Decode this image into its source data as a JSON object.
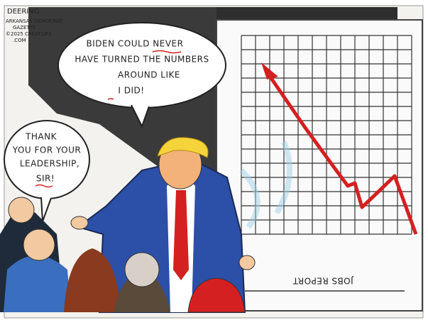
{
  "signature": {
    "lines": [
      "DEERING",
      "ARKANSAS DEMOCRAT-",
      "GAZETTE",
      "©2025 CREATORS",
      ".COM"
    ]
  },
  "speech_bubbles": [
    {
      "lines": [
        "BIDEN COULD NEVER",
        "HAVE TURNED THE NUMBERS",
        "AROUND LIKE",
        "I DID!"
      ]
    },
    {
      "lines": [
        "THANK",
        "YOU FOR YOUR",
        "LEADERSHIP,",
        "SIR!"
      ]
    }
  ],
  "chart_board": {
    "label": "JOBS REPORT"
  }
}
